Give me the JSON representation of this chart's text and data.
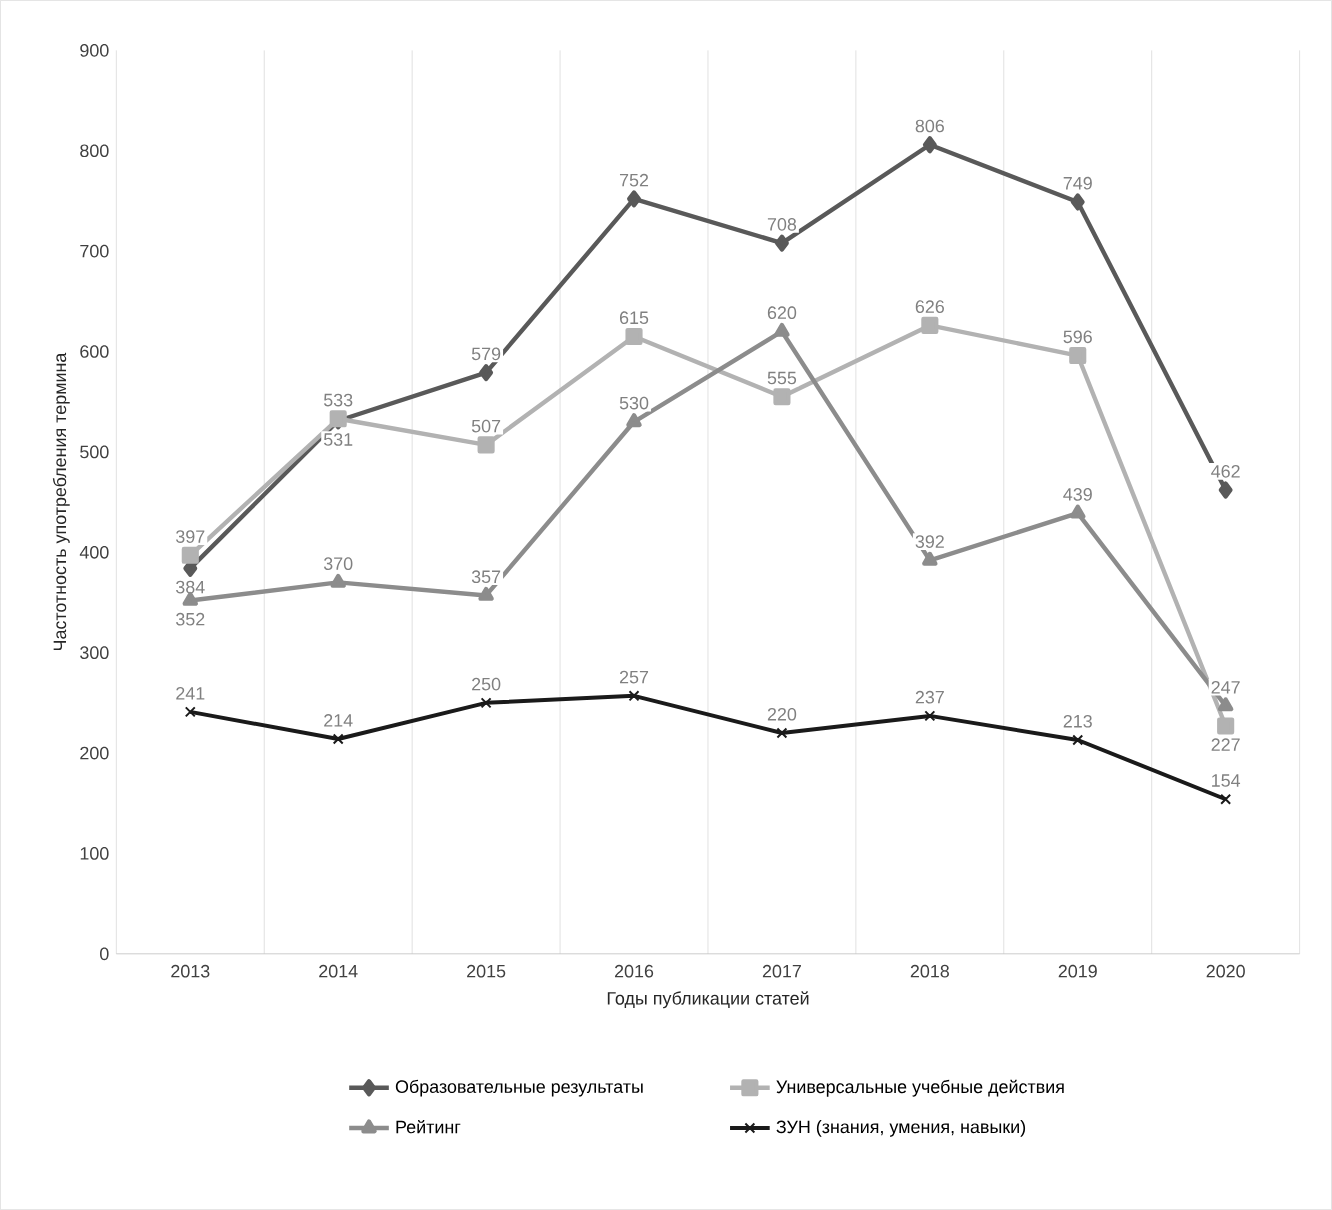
{
  "chart_data": {
    "type": "line",
    "xlabel": "Годы публикации статей",
    "ylabel": "Частотность употребления термина",
    "categories": [
      "2013",
      "2014",
      "2015",
      "2016",
      "2017",
      "2018",
      "2019",
      "2020"
    ],
    "series": [
      {
        "name": "Образовательные результаты",
        "color": "#595959",
        "marker": "diamond",
        "values": [
          384,
          531,
          579,
          752,
          708,
          806,
          749,
          462
        ]
      },
      {
        "name": "Универсальные учебные действия",
        "color": "#b2b2b2",
        "marker": "square",
        "values": [
          397,
          533,
          507,
          615,
          555,
          626,
          596,
          227
        ]
      },
      {
        "name": "Рейтинг",
        "color": "#8c8c8c",
        "marker": "triangle",
        "values": [
          352,
          370,
          357,
          530,
          620,
          392,
          439,
          247
        ]
      },
      {
        "name": "ЗУН (знания, умения, навыки)",
        "color": "#1a1a1a",
        "marker": "cross",
        "values": [
          241,
          214,
          250,
          257,
          220,
          237,
          213,
          154
        ]
      }
    ],
    "ylim": [
      0,
      900
    ],
    "yticks": [
      0,
      100,
      200,
      300,
      400,
      500,
      600,
      700,
      800,
      900
    ],
    "grid": "x",
    "legend": "bottom",
    "data_labels": true,
    "line_style": "solid"
  }
}
